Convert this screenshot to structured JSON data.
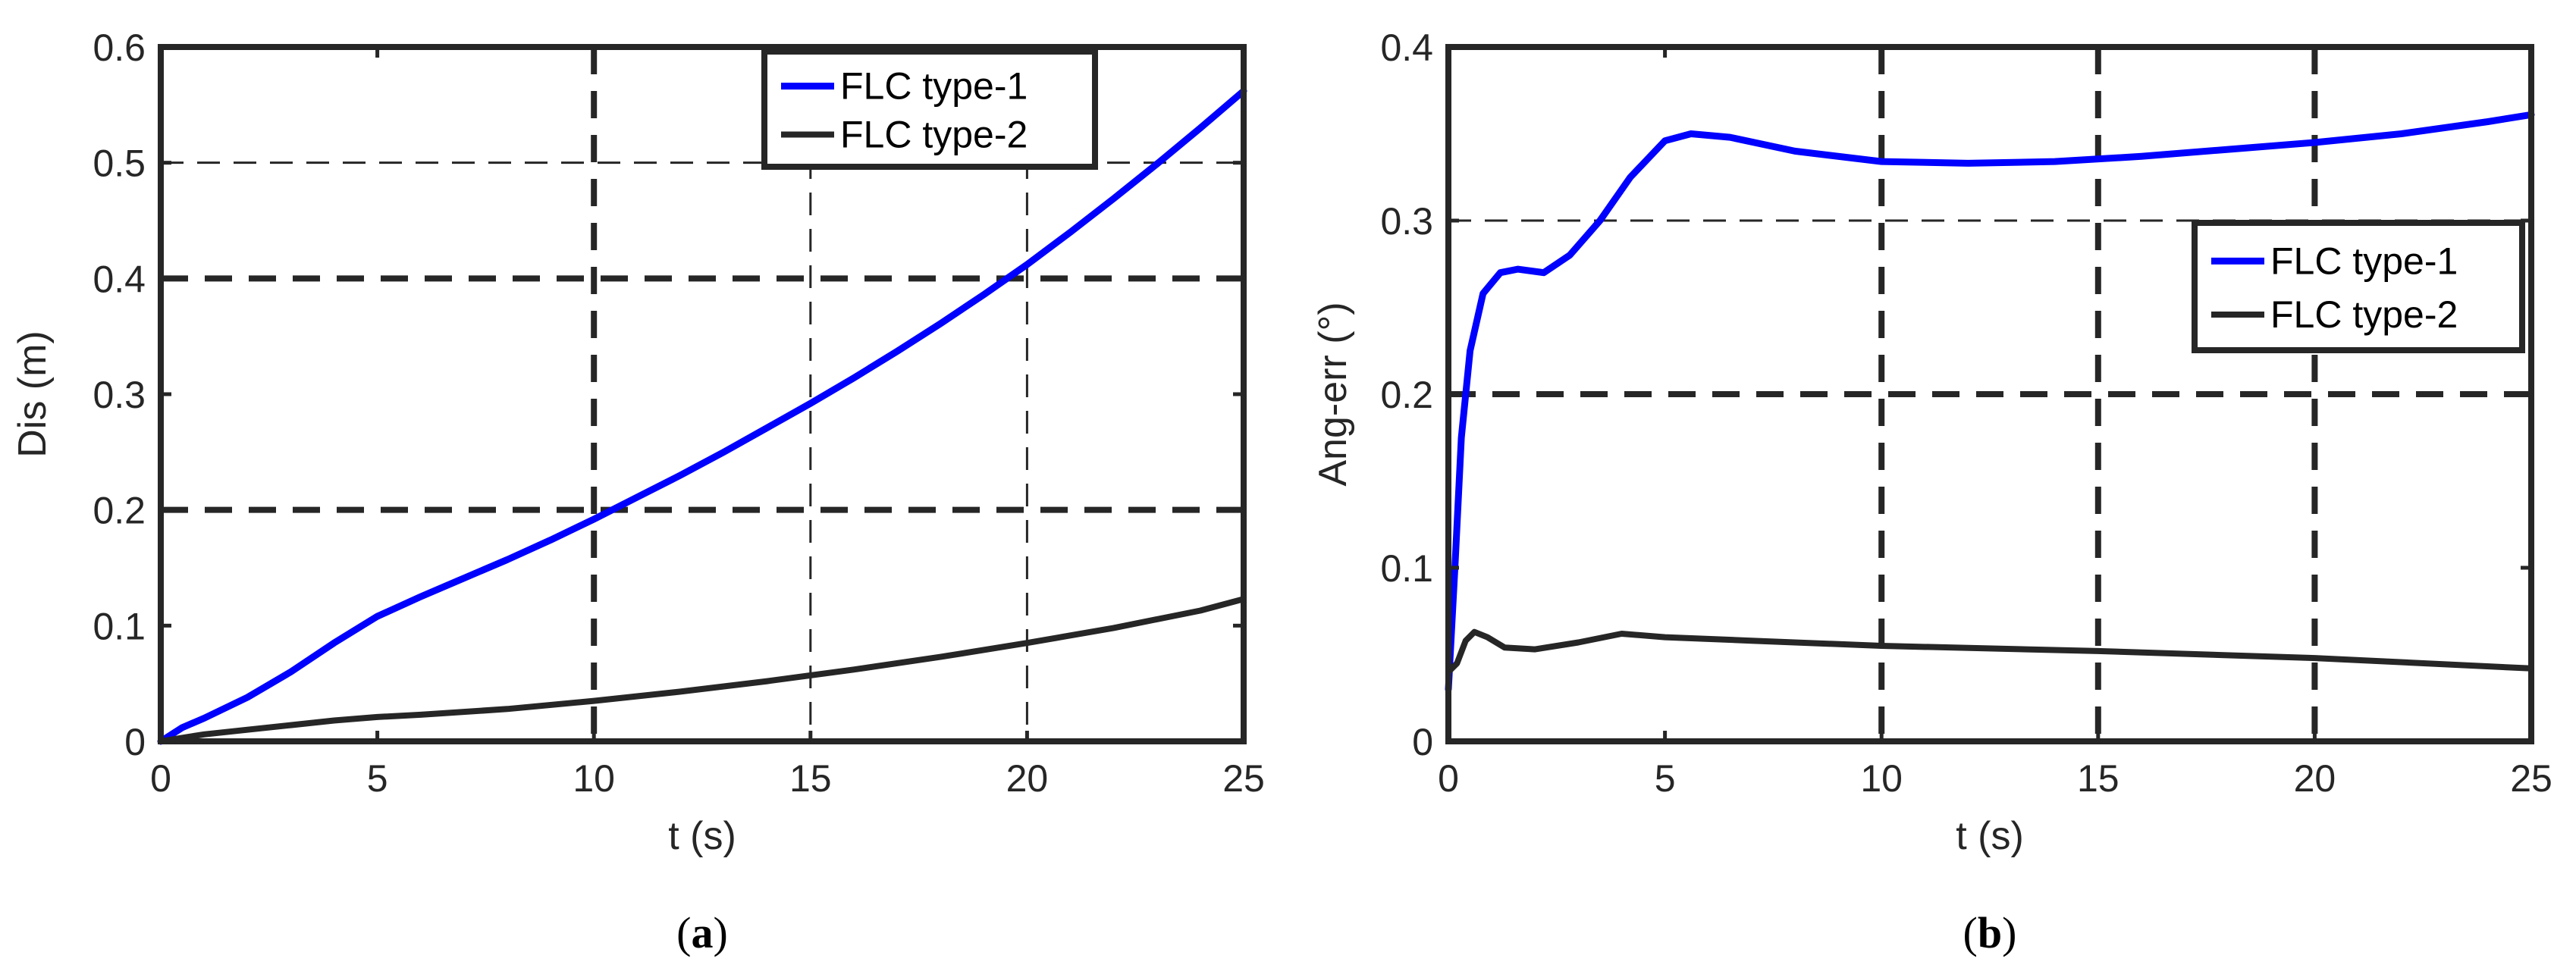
{
  "chart_data": [
    {
      "type": "line",
      "caption": "a",
      "xlabel": "t (s)",
      "ylabel": "Dis (m)",
      "xlim": [
        0,
        25
      ],
      "ylim": [
        0,
        0.6
      ],
      "xticks": [
        "0",
        "5",
        "10",
        "15",
        "20",
        "25"
      ],
      "yticks": [
        "0",
        "0.1",
        "0.2",
        "0.3",
        "0.4",
        "0.5",
        "0.6"
      ],
      "legend_position": "top-right",
      "gridlines": {
        "x": [
          {
            "at": 10,
            "style": "bold"
          },
          {
            "at": 15,
            "style": "thin"
          },
          {
            "at": 20,
            "style": "thin"
          }
        ],
        "y": [
          {
            "at": 0.2,
            "style": "bold"
          },
          {
            "at": 0.4,
            "style": "bold"
          },
          {
            "at": 0.5,
            "style": "thin"
          }
        ]
      },
      "series": [
        {
          "name": "FLC type-1",
          "color": "#0000ff",
          "x": [
            0,
            0.5,
            1,
            2,
            3,
            4,
            5,
            6,
            7,
            8,
            9,
            10,
            11,
            12,
            13,
            14,
            15,
            16,
            17,
            18,
            19,
            20,
            21,
            22,
            23,
            24,
            25
          ],
          "y": [
            0,
            0.012,
            0.02,
            0.038,
            0.06,
            0.085,
            0.108,
            0.125,
            0.141,
            0.157,
            0.174,
            0.192,
            0.211,
            0.23,
            0.25,
            0.271,
            0.292,
            0.314,
            0.337,
            0.361,
            0.386,
            0.412,
            0.44,
            0.469,
            0.499,
            0.53,
            0.562
          ]
        },
        {
          "name": "FLC type-2",
          "color": "#262626",
          "x": [
            0,
            1,
            2,
            3,
            4,
            5,
            6,
            8,
            10,
            12,
            14,
            16,
            18,
            20,
            22,
            24,
            25
          ],
          "y": [
            0,
            0.006,
            0.01,
            0.014,
            0.018,
            0.021,
            0.023,
            0.028,
            0.035,
            0.043,
            0.052,
            0.062,
            0.073,
            0.085,
            0.098,
            0.113,
            0.123
          ]
        }
      ]
    },
    {
      "type": "line",
      "caption": "b",
      "xlabel": "t (s)",
      "ylabel": "Ang-err (°)",
      "xlim": [
        0,
        25
      ],
      "ylim": [
        0,
        0.4
      ],
      "xticks": [
        "0",
        "5",
        "10",
        "15",
        "20",
        "25"
      ],
      "yticks": [
        "0",
        "0.1",
        "0.2",
        "0.3",
        "0.4"
      ],
      "legend_position": "right",
      "gridlines": {
        "x": [
          {
            "at": 10,
            "style": "bold"
          },
          {
            "at": 15,
            "style": "bold"
          },
          {
            "at": 20,
            "style": "bold"
          }
        ],
        "y": [
          {
            "at": 0.2,
            "style": "bold"
          },
          {
            "at": 0.3,
            "style": "thin"
          }
        ]
      },
      "series": [
        {
          "name": "FLC type-1",
          "color": "#0000ff",
          "x": [
            0,
            0.15,
            0.3,
            0.5,
            0.8,
            1.2,
            1.6,
            2.2,
            2.8,
            3.5,
            4.2,
            5,
            5.6,
            6.5,
            8,
            10,
            12,
            14,
            16,
            18,
            20,
            22,
            24,
            25
          ],
          "y": [
            0.03,
            0.1,
            0.175,
            0.225,
            0.258,
            0.27,
            0.272,
            0.27,
            0.28,
            0.3,
            0.325,
            0.346,
            0.35,
            0.348,
            0.34,
            0.334,
            0.333,
            0.334,
            0.337,
            0.341,
            0.345,
            0.35,
            0.357,
            0.361
          ]
        },
        {
          "name": "FLC type-2",
          "color": "#262626",
          "x": [
            0,
            0.2,
            0.4,
            0.6,
            0.9,
            1.3,
            2,
            3,
            4,
            5,
            7,
            10,
            15,
            20,
            25
          ],
          "y": [
            0.04,
            0.045,
            0.058,
            0.063,
            0.06,
            0.054,
            0.053,
            0.057,
            0.062,
            0.06,
            0.058,
            0.055,
            0.052,
            0.048,
            0.042
          ]
        }
      ]
    }
  ]
}
